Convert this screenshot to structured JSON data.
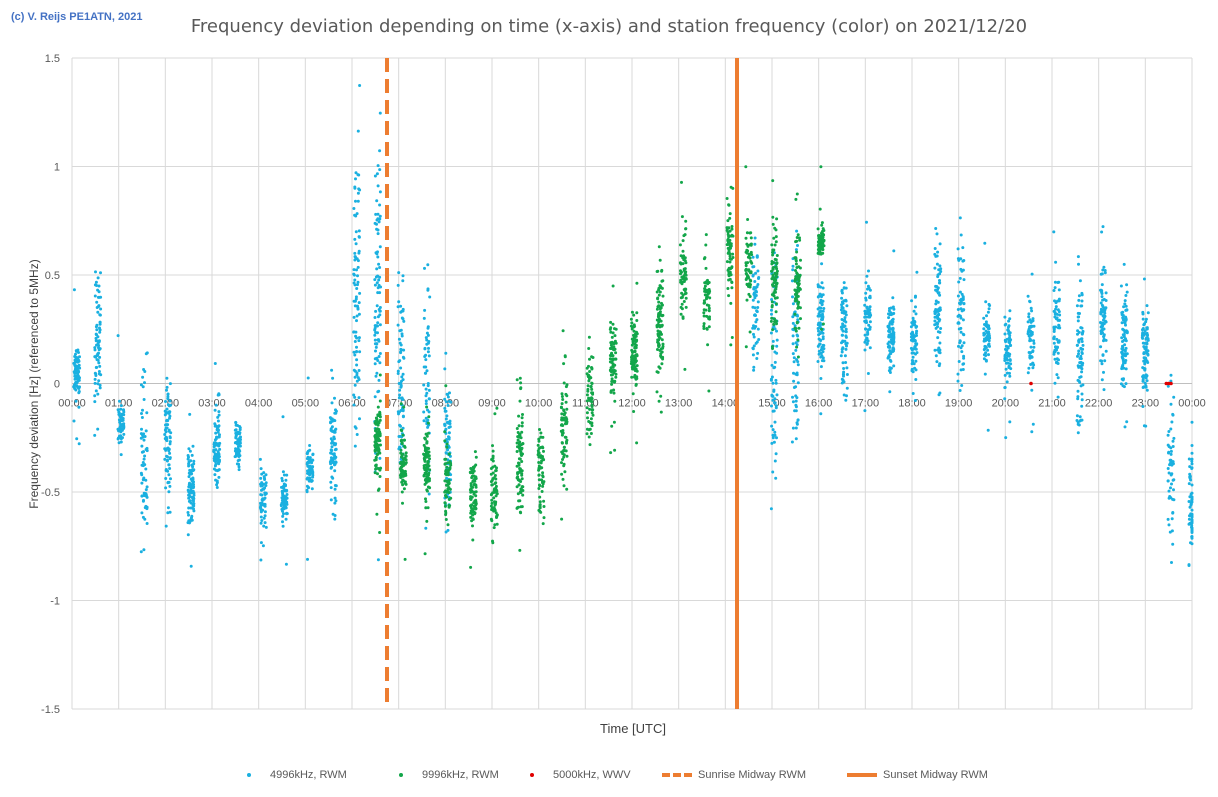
{
  "header": {
    "copyright": "(c) V. Reijs  PE1ATN, 2021"
  },
  "chart_data": {
    "type": "scatter",
    "title": "Frequency deviation depending on time (x-axis) and station frequency (color) on 2021/12/20",
    "xlabel": "Time [UTC]",
    "ylabel": "Frequency deviation [Hz] (referenced to 5MHz)",
    "xlim": [
      0,
      24
    ],
    "ylim": [
      -1.5,
      1.5
    ],
    "y_ticks": [
      1.5,
      1,
      0.5,
      0,
      -0.5,
      -1,
      -1.5
    ],
    "y_tick_labels": [
      "1.5",
      "1",
      "0.5",
      "0",
      "-0.5",
      "-1",
      "-1.5"
    ],
    "x_tick_labels": [
      "00:00",
      "01:00",
      "02:00",
      "03:00",
      "04:00",
      "05:00",
      "06:00",
      "07:00",
      "08:00",
      "09:00",
      "10:00",
      "11:00",
      "12:00",
      "13:00",
      "14:00",
      "15:00",
      "16:00",
      "17:00",
      "18:00",
      "19:00",
      "20:00",
      "21:00",
      "22:00",
      "23:00",
      "00:00"
    ],
    "grid": true,
    "legend_position": "bottom",
    "colors": {
      "rwm_4996": "#1ab0e0",
      "rwm_9996": "#13a64a",
      "wwv_5000": "#e00000",
      "sunrise": "#ed7d31",
      "sunset": "#ed7d31"
    },
    "series": [
      {
        "name": "4996kHz, RWM",
        "color": "#1ab0e0",
        "clusters": [
          {
            "x": 0.1,
            "y": 0.05,
            "spread": 0.05
          },
          {
            "x": 0.55,
            "y": 0.2,
            "spread": 0.15
          },
          {
            "x": 1.05,
            "y": -0.18,
            "spread": 0.05
          },
          {
            "x": 1.55,
            "y": -0.35,
            "spread": 0.2
          },
          {
            "x": 2.05,
            "y": -0.25,
            "spread": 0.15
          },
          {
            "x": 2.55,
            "y": -0.5,
            "spread": 0.1
          },
          {
            "x": 3.1,
            "y": -0.3,
            "spread": 0.08
          },
          {
            "x": 3.55,
            "y": -0.28,
            "spread": 0.05
          },
          {
            "x": 4.1,
            "y": -0.52,
            "spread": 0.06
          },
          {
            "x": 4.55,
            "y": -0.52,
            "spread": 0.05
          },
          {
            "x": 5.1,
            "y": -0.4,
            "spread": 0.05
          },
          {
            "x": 5.6,
            "y": -0.3,
            "spread": 0.12
          },
          {
            "x": 6.1,
            "y": 0.45,
            "spread": 0.35
          },
          {
            "x": 6.55,
            "y": 0.4,
            "spread": 0.4
          },
          {
            "x": 7.05,
            "y": 0.1,
            "spread": 0.25
          },
          {
            "x": 7.6,
            "y": 0.05,
            "spread": 0.25
          },
          {
            "x": 8.05,
            "y": -0.3,
            "spread": 0.15
          },
          {
            "x": 14.65,
            "y": 0.35,
            "spread": 0.15
          },
          {
            "x": 15.05,
            "y": 0.1,
            "spread": 0.25
          },
          {
            "x": 15.5,
            "y": 0.2,
            "spread": 0.25
          },
          {
            "x": 16.05,
            "y": 0.28,
            "spread": 0.1
          },
          {
            "x": 16.55,
            "y": 0.25,
            "spread": 0.15
          },
          {
            "x": 17.05,
            "y": 0.3,
            "spread": 0.08
          },
          {
            "x": 17.55,
            "y": 0.22,
            "spread": 0.08
          },
          {
            "x": 18.05,
            "y": 0.2,
            "spread": 0.1
          },
          {
            "x": 18.55,
            "y": 0.38,
            "spread": 0.15
          },
          {
            "x": 19.05,
            "y": 0.35,
            "spread": 0.15
          },
          {
            "x": 19.6,
            "y": 0.22,
            "spread": 0.07
          },
          {
            "x": 20.05,
            "y": 0.15,
            "spread": 0.08
          },
          {
            "x": 20.55,
            "y": 0.2,
            "spread": 0.08
          },
          {
            "x": 21.1,
            "y": 0.25,
            "spread": 0.12
          },
          {
            "x": 21.6,
            "y": 0.15,
            "spread": 0.15
          },
          {
            "x": 22.1,
            "y": 0.3,
            "spread": 0.12
          },
          {
            "x": 22.55,
            "y": 0.2,
            "spread": 0.12
          },
          {
            "x": 23.0,
            "y": 0.15,
            "spread": 0.1
          },
          {
            "x": 23.55,
            "y": -0.35,
            "spread": 0.2
          },
          {
            "x": 24.0,
            "y": -0.55,
            "spread": 0.12
          }
        ]
      },
      {
        "name": "9996kHz, RWM",
        "color": "#13a64a",
        "clusters": [
          {
            "x": 6.55,
            "y": -0.25,
            "spread": 0.08
          },
          {
            "x": 7.1,
            "y": -0.38,
            "spread": 0.06
          },
          {
            "x": 7.6,
            "y": -0.4,
            "spread": 0.1
          },
          {
            "x": 8.05,
            "y": -0.45,
            "spread": 0.08
          },
          {
            "x": 8.6,
            "y": -0.5,
            "spread": 0.07
          },
          {
            "x": 9.05,
            "y": -0.5,
            "spread": 0.1
          },
          {
            "x": 9.6,
            "y": -0.35,
            "spread": 0.12
          },
          {
            "x": 10.05,
            "y": -0.4,
            "spread": 0.12
          },
          {
            "x": 10.55,
            "y": -0.2,
            "spread": 0.12
          },
          {
            "x": 11.1,
            "y": -0.05,
            "spread": 0.1
          },
          {
            "x": 11.6,
            "y": 0.1,
            "spread": 0.1
          },
          {
            "x": 12.05,
            "y": 0.15,
            "spread": 0.08
          },
          {
            "x": 12.6,
            "y": 0.3,
            "spread": 0.12
          },
          {
            "x": 13.1,
            "y": 0.5,
            "spread": 0.12
          },
          {
            "x": 13.6,
            "y": 0.4,
            "spread": 0.08
          },
          {
            "x": 14.1,
            "y": 0.6,
            "spread": 0.1
          },
          {
            "x": 14.5,
            "y": 0.55,
            "spread": 0.08
          },
          {
            "x": 15.05,
            "y": 0.5,
            "spread": 0.1
          },
          {
            "x": 15.55,
            "y": 0.45,
            "spread": 0.12
          },
          {
            "x": 16.05,
            "y": 0.65,
            "spread": 0.03
          }
        ]
      },
      {
        "name": "5000kHz, WWV",
        "color": "#e00000",
        "points": [
          [
            20.55,
            0.0
          ],
          [
            23.45,
            0.0
          ],
          [
            23.5,
            0.0
          ],
          [
            23.55,
            0.0
          ]
        ]
      }
    ],
    "vertical_lines": [
      {
        "name": "Sunrise Midway RWM",
        "x": 6.75,
        "style": "dashed",
        "color": "#ed7d31"
      },
      {
        "name": "Sunset Midway RWM",
        "x": 14.25,
        "style": "solid",
        "color": "#ed7d31"
      }
    ]
  }
}
